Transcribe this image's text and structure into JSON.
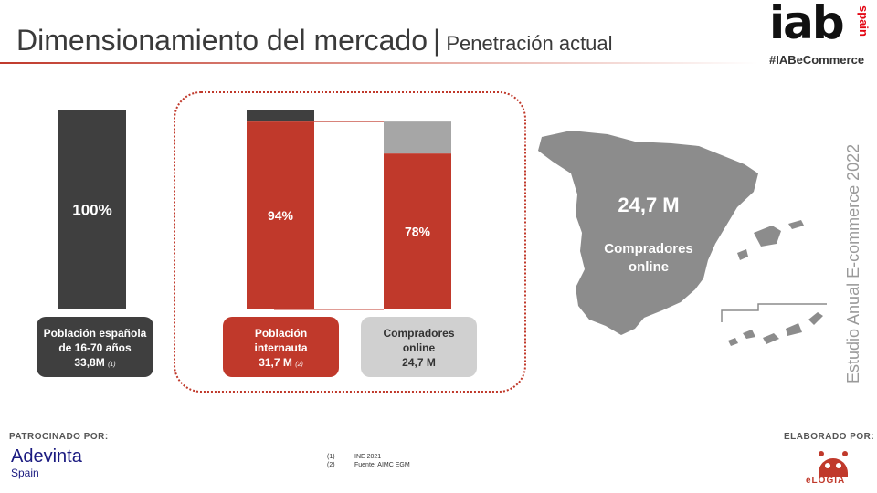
{
  "header": {
    "title": "Dimensionamiento del mercado",
    "separator": "|",
    "subtitle": "Penetración actual",
    "logo_text": "iab",
    "logo_country": "spain",
    "hashtag": "#IABeCommerce"
  },
  "colors": {
    "accent": "#c0392b",
    "dark": "#3f3f3f",
    "light": "#a6a6a6",
    "map": "#8c8c8c"
  },
  "chart_data": {
    "type": "bar",
    "title": "",
    "xlabel": "",
    "ylabel": "",
    "ylim": [
      0,
      100
    ],
    "categories": [
      "Población española de 16-70 años",
      "Población internauta",
      "Compradores online"
    ],
    "values": [
      100,
      94,
      78
    ],
    "data_labels": [
      "100%",
      "94%",
      "78%"
    ]
  },
  "captions": [
    {
      "line1": "Población española",
      "line2": "de 16-70 años",
      "line3": "33,8M",
      "ref": "(1)"
    },
    {
      "line1": "Población",
      "line2": "internauta",
      "line3": "31,7 M",
      "ref": "(2)"
    },
    {
      "line1": "Compradores",
      "line2": "online",
      "line3": "24,7 M",
      "ref": ""
    }
  ],
  "map": {
    "value": "24,7 M",
    "label_line1": "Compradores",
    "label_line2": "online"
  },
  "side_text": "Estudio Anual E-commerce  2022",
  "footer": {
    "sponsor_label": "PATROCINADO POR:",
    "sponsor_name": "Adevinta",
    "sponsor_region": "Spain",
    "notes": [
      {
        "num": "(1)",
        "text": "INE 2021"
      },
      {
        "num": "(2)",
        "text": "Fuente: AIMC EGM"
      }
    ],
    "made_label": "ELABORADO POR:",
    "made_name": "eLOGIA"
  }
}
